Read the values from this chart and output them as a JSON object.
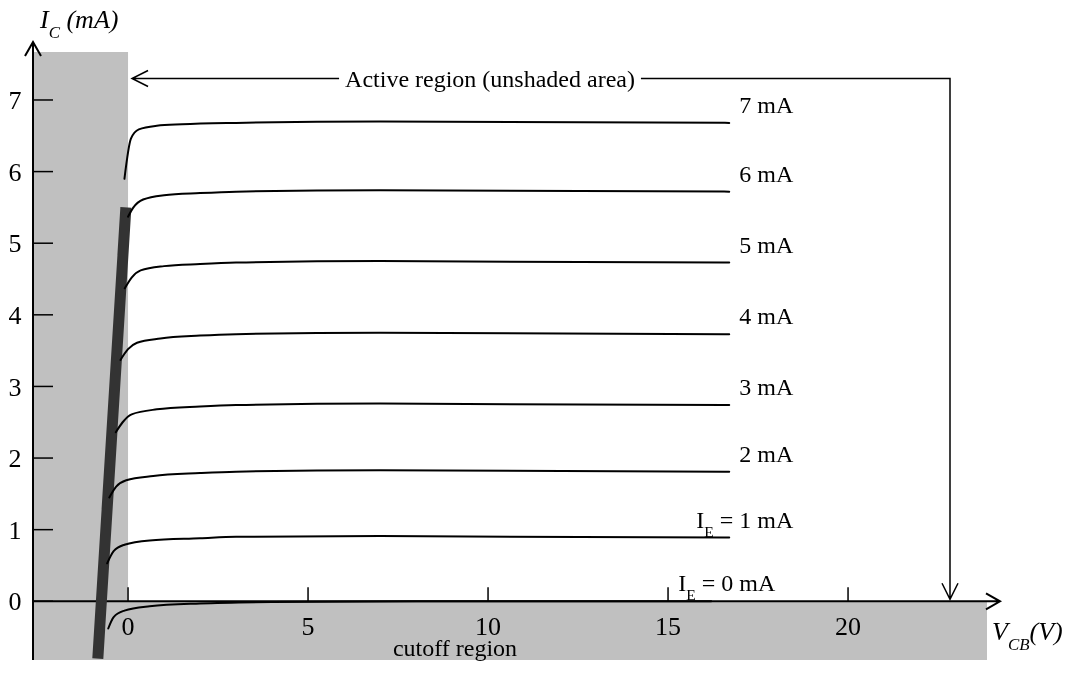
{
  "chart_data": {
    "type": "line",
    "xlabel": "V$_{CB}$(V)",
    "ylabel": "I$_{C}$ (mA)",
    "xlim": [
      -2.64,
      23.86
    ],
    "ylim": [
      -0.82,
      7.67
    ],
    "xticks": [
      0,
      5,
      10,
      15,
      20
    ],
    "yticks": [
      0,
      1,
      2,
      3,
      4,
      5,
      6,
      7
    ],
    "series": [
      {
        "color": "#333333",
        "x": [
          -0.84,
          -0.06
        ],
        "values": [
          -0.8,
          5.5
        ]
      },
      {
        "name": "7 mA",
        "color": "#000000",
        "x": [
          -0.1,
          0.08,
          0.3,
          0.8,
          1.5,
          3,
          7,
          16.7
        ],
        "values": [
          5.9,
          6.46,
          6.59,
          6.64,
          6.66,
          6.68,
          6.7,
          6.68
        ]
      },
      {
        "name": "6 mA",
        "color": "#000000",
        "x": [
          0,
          0.15,
          0.42,
          1,
          2,
          3,
          7,
          16.7
        ],
        "values": [
          5.37,
          5.5,
          5.61,
          5.67,
          5.7,
          5.72,
          5.74,
          5.72
        ]
      },
      {
        "name": "5 mA",
        "color": "#000000",
        "x": [
          -0.09,
          0.1,
          0.35,
          1,
          2,
          3,
          7,
          16.7
        ],
        "values": [
          4.37,
          4.52,
          4.62,
          4.68,
          4.71,
          4.73,
          4.75,
          4.73
        ]
      },
      {
        "name": "4 mA",
        "color": "#000000",
        "x": [
          -0.21,
          0,
          0.25,
          0.9,
          2,
          3,
          7,
          16.7
        ],
        "values": [
          3.37,
          3.52,
          3.61,
          3.67,
          3.71,
          3.73,
          3.75,
          3.73
        ]
      },
      {
        "name": "3 mA",
        "color": "#000000",
        "x": [
          -0.34,
          -0.15,
          0.1,
          0.8,
          2,
          3,
          7,
          16.7
        ],
        "values": [
          2.36,
          2.5,
          2.61,
          2.68,
          2.72,
          2.74,
          2.76,
          2.74
        ]
      },
      {
        "name": "2 mA",
        "color": "#000000",
        "x": [
          -0.52,
          -0.33,
          -0.05,
          0.7,
          2,
          3,
          7,
          16.7
        ],
        "values": [
          1.45,
          1.6,
          1.69,
          1.75,
          1.79,
          1.81,
          1.83,
          1.81
        ]
      },
      {
        "name": "I$_{E}$ = 1 mA",
        "color": "#000000",
        "x": [
          -0.58,
          -0.4,
          -0.1,
          0.6,
          2,
          3,
          7,
          16.7
        ],
        "values": [
          0.53,
          0.7,
          0.79,
          0.85,
          0.88,
          0.9,
          0.91,
          0.89
        ]
      },
      {
        "name": "I$_{E}$ = 0 mA",
        "color": "#000000",
        "x": [
          -0.55,
          -0.4,
          -0.1,
          0.6,
          2,
          4,
          8,
          16.2
        ],
        "values": [
          -0.38,
          -0.22,
          -0.13,
          -0.07,
          -0.03,
          -0.01,
          0,
          0
        ]
      }
    ],
    "bands": [
      {
        "axis": "x",
        "from": -2.64,
        "to": 0,
        "color": "#c0c0c0"
      },
      {
        "axis": "y",
        "from": -0.82,
        "to": 0,
        "color": "#c0c0c0",
        "label": "cutoff region"
      }
    ],
    "annotations": [
      {
        "text": "Active region (unshaded area)",
        "x": 0,
        "y": 7.3
      }
    ]
  }
}
